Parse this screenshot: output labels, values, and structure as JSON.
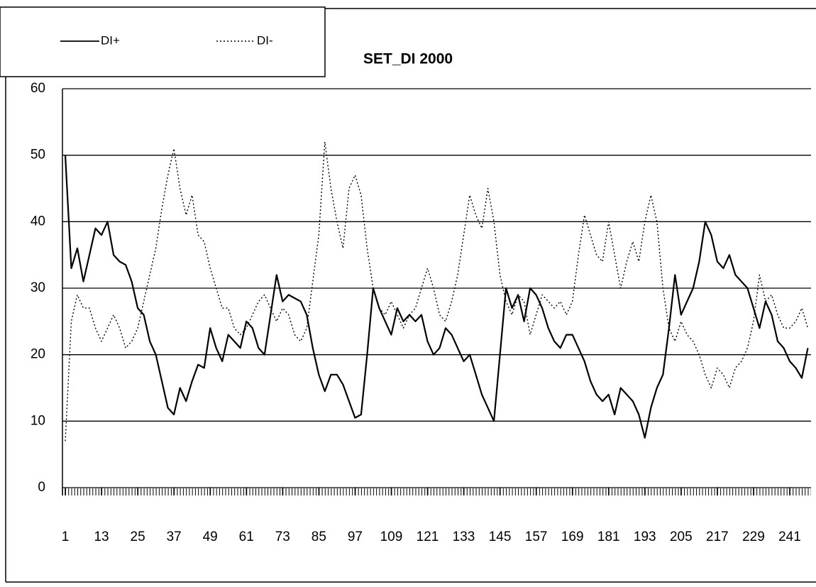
{
  "chart_data": {
    "type": "line",
    "title": "SET_DI 2000",
    "x": [
      1,
      3,
      5,
      7,
      9,
      11,
      13,
      15,
      17,
      19,
      21,
      23,
      25,
      27,
      29,
      31,
      33,
      35,
      37,
      39,
      41,
      43,
      45,
      47,
      49,
      51,
      53,
      55,
      57,
      59,
      61,
      63,
      65,
      67,
      69,
      71,
      73,
      75,
      77,
      79,
      81,
      83,
      85,
      87,
      89,
      91,
      93,
      95,
      97,
      99,
      101,
      103,
      105,
      107,
      109,
      111,
      113,
      115,
      117,
      119,
      121,
      123,
      125,
      127,
      129,
      131,
      133,
      135,
      137,
      139,
      141,
      143,
      145,
      147,
      149,
      151,
      153,
      155,
      157,
      159,
      161,
      163,
      165,
      167,
      169,
      171,
      173,
      175,
      177,
      179,
      181,
      183,
      185,
      187,
      189,
      191,
      193,
      195,
      197,
      199,
      201,
      203,
      205,
      207,
      209,
      211,
      213,
      215,
      217,
      219,
      221,
      223,
      225,
      227,
      229,
      231,
      233,
      235,
      237,
      239,
      241,
      243,
      245,
      247
    ],
    "series": [
      {
        "name": "DI+",
        "color": "#000000",
        "dash": "solid",
        "values": [
          50,
          33,
          36,
          31,
          35,
          39,
          38,
          40,
          35,
          34,
          33.5,
          31,
          27,
          26,
          22,
          20,
          16,
          12,
          11,
          15,
          13,
          16,
          18.5,
          18,
          24,
          21,
          19,
          23,
          22,
          21,
          25,
          24,
          21,
          20,
          26,
          32,
          28,
          29,
          28.5,
          28,
          26,
          21,
          17,
          14.5,
          17,
          17,
          15.5,
          13,
          10.5,
          11,
          20,
          30,
          27,
          25,
          23,
          27,
          25,
          26,
          25,
          26,
          22,
          20,
          21,
          24,
          23,
          21,
          19,
          20,
          17,
          14,
          12,
          10,
          20,
          30,
          27,
          29,
          25,
          30,
          29,
          27,
          24,
          22,
          21,
          23,
          23,
          21,
          19,
          16,
          14,
          13,
          14,
          11,
          15,
          14,
          13,
          11,
          7.5,
          12,
          15,
          17,
          24,
          32,
          26,
          28,
          30,
          34,
          40,
          38,
          34,
          33,
          35,
          32,
          31,
          30,
          27,
          24,
          28,
          26,
          22,
          21,
          19,
          18,
          16.5,
          21
        ]
      },
      {
        "name": "DI-",
        "color": "#000000",
        "dash": "dotted",
        "values": [
          7,
          25,
          29,
          27,
          27,
          24,
          22,
          24,
          26,
          24,
          21,
          22,
          24,
          28,
          32,
          36,
          42,
          47,
          51,
          45,
          41,
          44,
          38,
          37,
          33,
          30,
          27,
          27,
          24,
          23,
          24,
          26,
          28,
          29,
          27,
          25,
          27,
          26,
          23,
          22,
          24,
          31,
          38,
          52,
          45,
          40,
          36,
          45,
          47,
          44,
          36,
          30,
          27,
          26,
          28,
          26,
          24,
          26,
          27,
          30,
          33,
          30,
          26,
          25,
          28,
          32,
          38,
          44,
          41,
          39,
          45,
          40,
          32,
          28,
          26,
          29,
          28,
          23,
          26,
          29,
          28,
          27,
          28,
          26,
          28,
          35,
          41,
          38,
          35,
          34,
          40,
          35,
          30,
          34,
          37,
          34,
          40,
          44,
          40,
          30,
          24,
          22,
          25,
          23,
          22,
          20,
          17,
          15,
          18,
          17,
          15,
          18,
          19,
          21,
          25,
          32,
          28,
          29,
          26,
          24,
          24,
          25,
          27,
          24
        ]
      }
    ],
    "xlim": [
      1,
      247
    ],
    "xticks": [
      1,
      13,
      25,
      37,
      49,
      61,
      73,
      85,
      97,
      109,
      121,
      133,
      145,
      157,
      169,
      181,
      193,
      205,
      217,
      229,
      241
    ],
    "ylim": [
      0,
      60
    ],
    "yticks": [
      0,
      10,
      20,
      30,
      40,
      50,
      60
    ],
    "grid": true
  }
}
